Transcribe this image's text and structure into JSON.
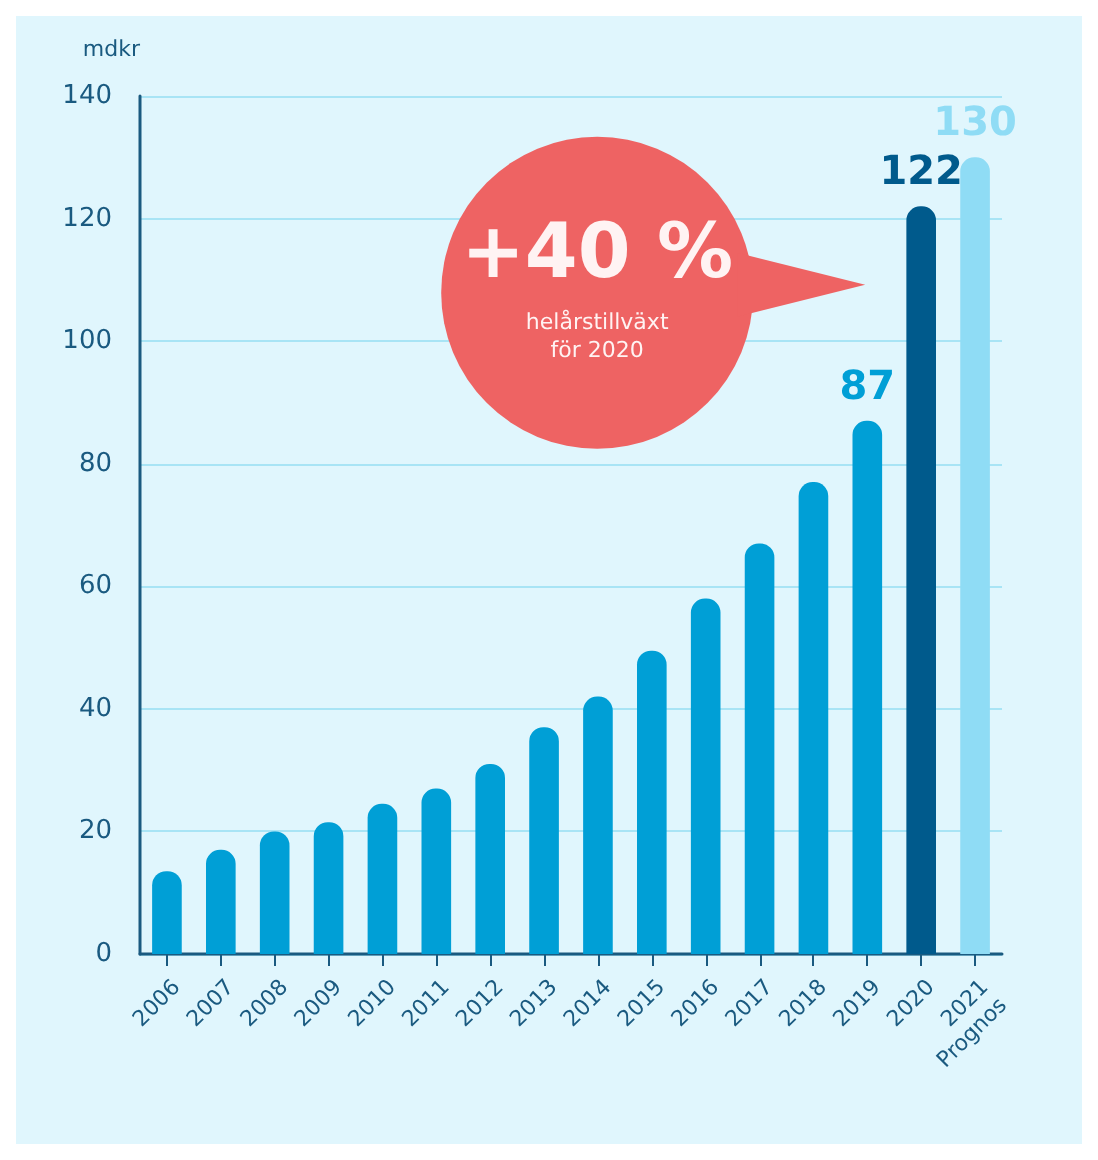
{
  "chart_data": {
    "type": "bar",
    "ylabel": "mdkr",
    "categories": [
      "2006",
      "2007",
      "2008",
      "2009",
      "2010",
      "2011",
      "2012",
      "2013",
      "2014",
      "2015",
      "2016",
      "2017",
      "2018",
      "2019",
      "2020",
      "2021\nPrognos"
    ],
    "values": [
      13.5,
      17,
      20,
      21.5,
      24.5,
      27,
      31,
      37,
      42,
      49.5,
      58,
      67,
      77,
      87,
      122,
      130
    ],
    "colors": [
      "#009fd6",
      "#009fd6",
      "#009fd6",
      "#009fd6",
      "#009fd6",
      "#009fd6",
      "#009fd6",
      "#009fd6",
      "#009fd6",
      "#009fd6",
      "#009fd6",
      "#009fd6",
      "#009fd6",
      "#009fd6",
      "#005a8c",
      "#8fdcf5"
    ],
    "value_labels": [
      null,
      null,
      null,
      null,
      null,
      null,
      null,
      null,
      null,
      null,
      null,
      null,
      null,
      "87",
      "122",
      "130"
    ],
    "ylim": [
      0,
      140
    ],
    "yticks": [
      0,
      20,
      40,
      60,
      80,
      100,
      120,
      140
    ],
    "grid": "y",
    "annotations": [
      "+40 %",
      "helårstillväxt\nför 2020"
    ]
  }
}
